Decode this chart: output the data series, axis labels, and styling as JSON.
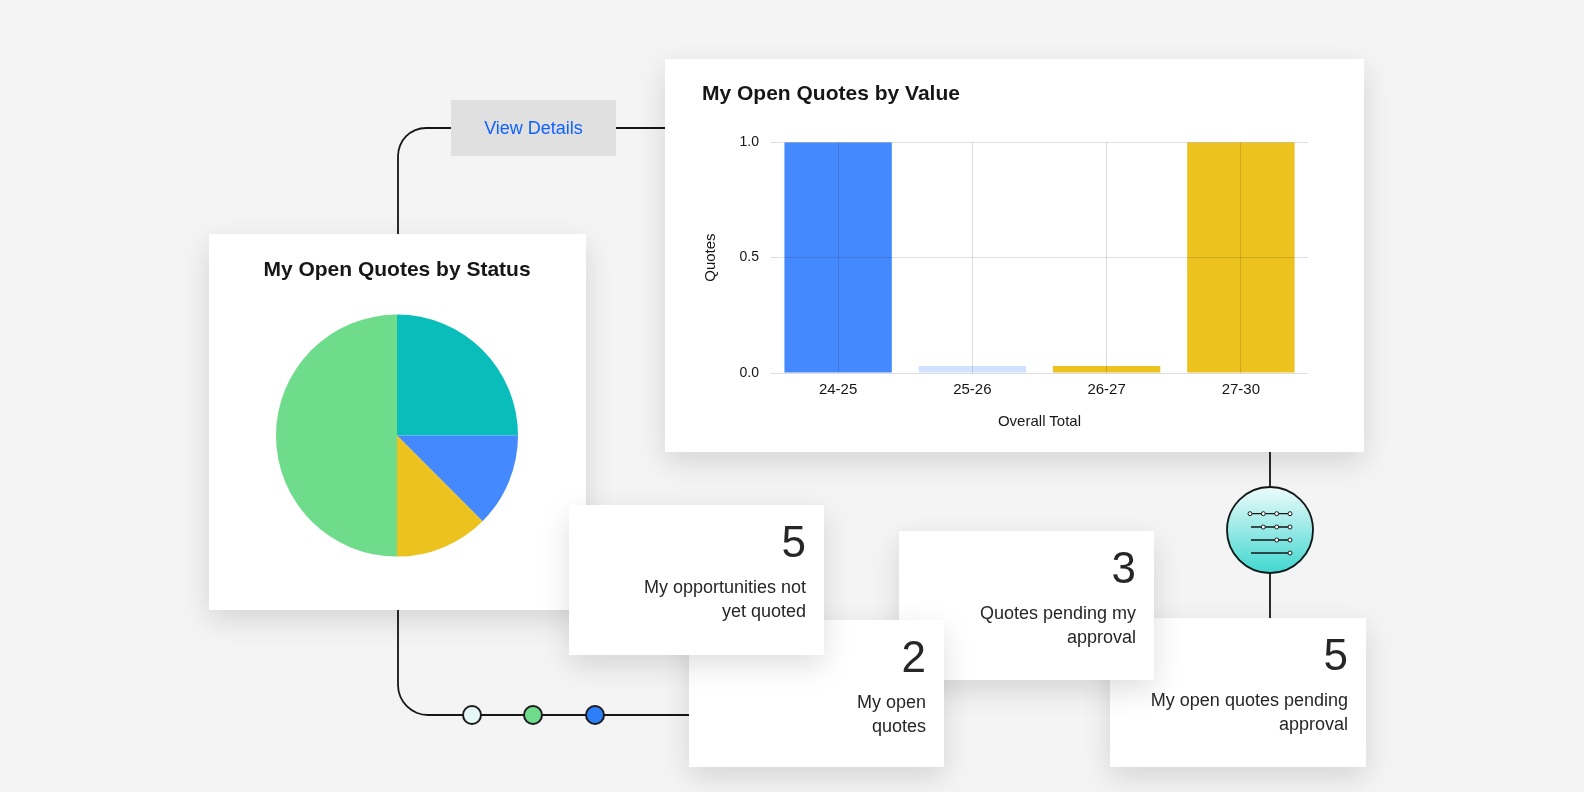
{
  "chart_data": [
    {
      "type": "pie",
      "title": "My Open Quotes by Status",
      "categories": [
        null,
        null,
        null,
        null
      ],
      "values": [
        25,
        12.5,
        12.5,
        50
      ],
      "colors": [
        "#08bdba",
        "#4589ff",
        "#ebc21e",
        "#6fdc8c"
      ]
    },
    {
      "type": "bar",
      "title": "My Open Quotes by Value",
      "categories": [
        "24-25",
        "25-26",
        "26-27",
        "27-30"
      ],
      "values": [
        1,
        0.03,
        0.03,
        1
      ],
      "colors": [
        "#4589ff",
        "#d0e2ff",
        "#ebc21e",
        "#ebc21e"
      ],
      "xlabel": "Overall Total",
      "ylabel": "Quotes",
      "ylim": [
        0,
        1
      ],
      "yticks": [
        {
          "value": 0,
          "label": "0.0"
        },
        {
          "value": 0.5,
          "label": "0.5"
        },
        {
          "value": 1,
          "label": "1.0"
        }
      ],
      "grid": true,
      "annotations": [
        "View Details"
      ]
    },
    {
      "type": "other",
      "categories": [
        "My opportunities not yet quoted"
      ],
      "values": [
        5
      ],
      "data_labels": true
    },
    {
      "type": "other",
      "categories": [
        "My open quotes"
      ],
      "values": [
        2
      ],
      "data_labels": true
    },
    {
      "type": "other",
      "categories": [
        "Quotes pending my approval"
      ],
      "values": [
        3
      ],
      "data_labels": true
    },
    {
      "type": "other",
      "categories": [
        "My open quotes pending approval"
      ],
      "values": [
        5
      ],
      "data_labels": true
    }
  ]
}
